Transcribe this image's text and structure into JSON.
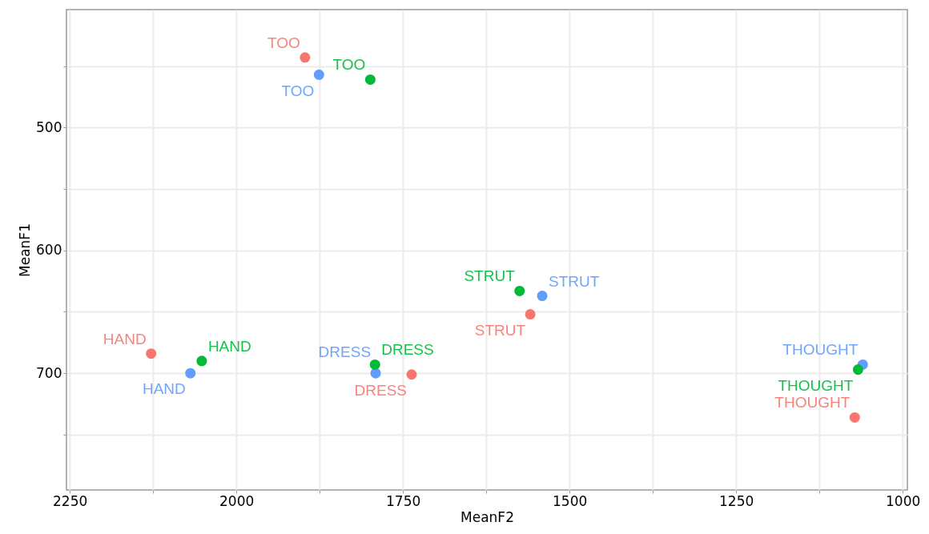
{
  "chart_data": {
    "type": "scatter",
    "xlabel": "MeanF2",
    "ylabel": "MeanF1",
    "xlim": [
      2255,
      993
    ],
    "ylim": [
      795,
      404
    ],
    "xticks": [
      2250,
      {
        "value": 2125,
        "label": null
      },
      2000,
      {
        "value": 1875,
        "label": null
      },
      1750,
      {
        "value": 1625,
        "label": null
      },
      1500,
      {
        "value": 1375,
        "label": null
      },
      1250,
      {
        "value": 1125,
        "label": null
      },
      1000
    ],
    "yticks": [
      {
        "value": 450,
        "label": null
      },
      500,
      {
        "value": 550,
        "label": null
      },
      600,
      {
        "value": 650,
        "label": null
      },
      700,
      {
        "value": 750,
        "label": null
      }
    ],
    "grid": true,
    "marker": "circle",
    "series": [
      {
        "color": "#f8766d",
        "x": [
          1897,
          1559,
          2128,
          1737,
          1072
        ],
        "values": [
          443,
          652,
          684,
          701,
          736
        ],
        "value_labels": [
          "TOO",
          "STRUT",
          "HAND",
          "DRESS",
          "THOUGHT"
        ]
      },
      {
        "color": "#619cff",
        "x": [
          1876,
          1541,
          2069,
          1791,
          1060
        ],
        "values": [
          457,
          637,
          700,
          700,
          693
        ],
        "value_labels": [
          "TOO",
          "STRUT",
          "HAND",
          "DRESS",
          "THOUGHT"
        ]
      },
      {
        "color": "#00ba38",
        "x": [
          1799,
          1575,
          2052,
          1792,
          1067
        ],
        "values": [
          461,
          633,
          690,
          693,
          697
        ],
        "value_labels": [
          "TOO",
          "STRUT",
          "HAND",
          "DRESS",
          "THOUGHT"
        ]
      }
    ]
  }
}
